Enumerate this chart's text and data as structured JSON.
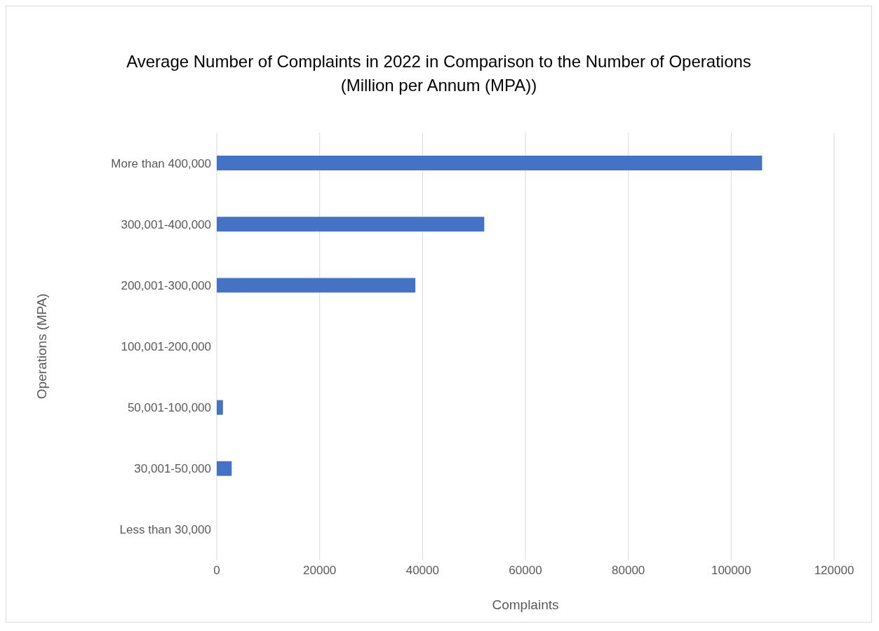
{
  "chart_data": {
    "type": "bar",
    "orientation": "horizontal",
    "title": "Average Number of Complaints in 2022  in Comparison to the Number of Operations (Million per Annum (MPA))",
    "xlabel": "Complaints",
    "ylabel": "Operations (MPA)",
    "categories": [
      "More than 400,000",
      "300,001-400,000",
      "200,001-300,000",
      "100,001-200,000",
      "50,001-100,000",
      "30,001-50,000",
      "Less than 30,000"
    ],
    "values": [
      106000,
      52000,
      38600,
      null,
      1200,
      2900,
      null
    ],
    "color": "#4472c4",
    "xlim": [
      0,
      120000
    ],
    "xticks": [
      0,
      20000,
      40000,
      60000,
      80000,
      100000,
      120000
    ],
    "grid": "x"
  }
}
